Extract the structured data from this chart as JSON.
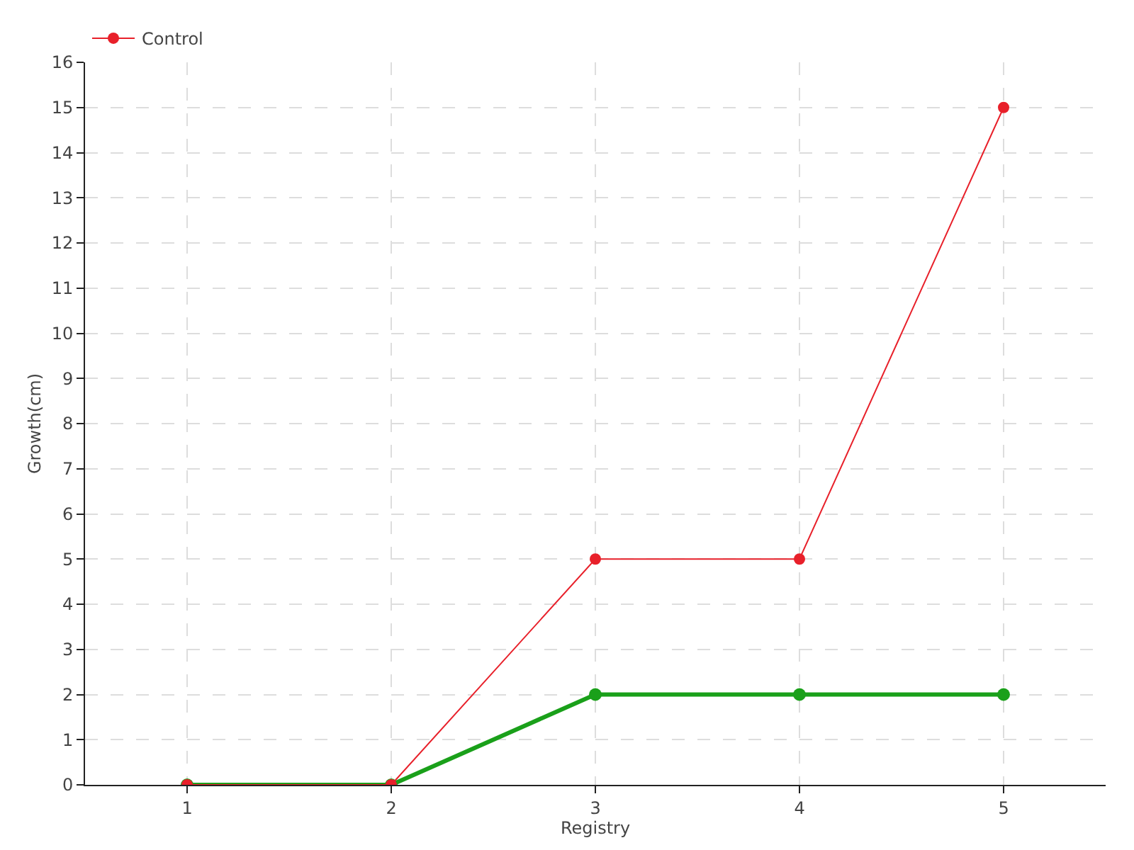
{
  "chart_data": {
    "type": "line",
    "xlabel": "Registry",
    "ylabel": "Growth(cm)",
    "x": [
      1,
      2,
      3,
      4,
      5
    ],
    "series": [
      {
        "color": "#1aa01a",
        "values": [
          0,
          0,
          2,
          2,
          2
        ]
      },
      {
        "name": "Control",
        "color": "#e8202a",
        "values": [
          0,
          0,
          5,
          5,
          15
        ]
      }
    ],
    "xlim": [
      0.5,
      5.5
    ],
    "xticks": [
      1,
      2,
      3,
      4,
      5
    ],
    "ylim": [
      0,
      16
    ],
    "yticks": [
      0,
      1,
      2,
      3,
      4,
      5,
      6,
      7,
      8,
      9,
      10,
      11,
      12,
      13,
      14,
      15,
      16
    ],
    "grid": true,
    "legend": "top left",
    "marker": "circle",
    "line_style": "solid"
  }
}
